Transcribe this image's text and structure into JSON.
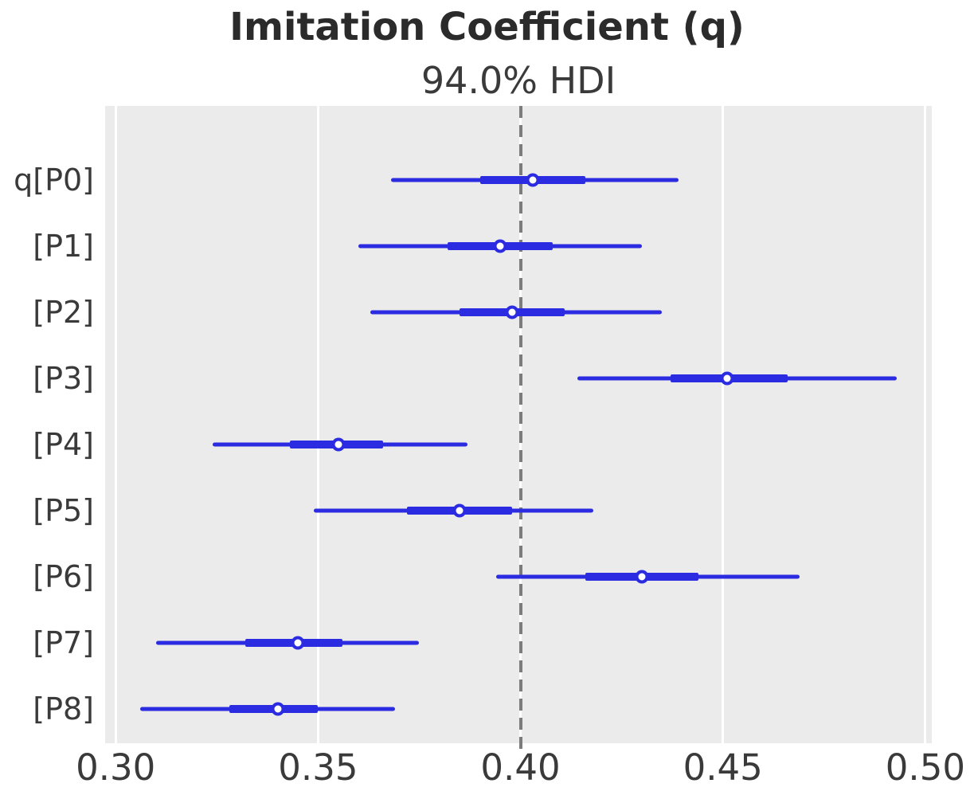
{
  "header": {
    "title": "Imitation Coefficient (q)",
    "subtitle": "94.0% HDI"
  },
  "colors": {
    "interval": "#2b2be1",
    "marker_fill": "#ffffff",
    "reference_line": "#7c7c7c",
    "plot_background": "#ebebeb",
    "gridline": "#ffffff",
    "text": "#3a3a3a",
    "title_text": "#2b2b2b"
  },
  "chart_data": {
    "type": "forest",
    "title": "Imitation Coefficient (q)",
    "subtitle": "94.0% HDI",
    "hdi_probability": "94.0%",
    "xlim": [
      0.2974,
      0.5016
    ],
    "x_ticks": [
      0.3,
      0.35,
      0.4,
      0.45,
      0.5
    ],
    "x_tick_labels": [
      "0.30",
      "0.35",
      "0.40",
      "0.45",
      "0.50"
    ],
    "reference_value": 0.4,
    "grid": "vertical-white-on-gray",
    "legend": "none",
    "rows": [
      {
        "label": "q[P0]",
        "hdi_low": 0.368,
        "q25": 0.39,
        "median": 0.403,
        "q75": 0.416,
        "hdi_high": 0.439
      },
      {
        "label": "[P1]",
        "hdi_low": 0.36,
        "q25": 0.382,
        "median": 0.395,
        "q75": 0.408,
        "hdi_high": 0.43
      },
      {
        "label": "[P2]",
        "hdi_low": 0.363,
        "q25": 0.385,
        "median": 0.398,
        "q75": 0.411,
        "hdi_high": 0.435
      },
      {
        "label": "[P3]",
        "hdi_low": 0.414,
        "q25": 0.437,
        "median": 0.451,
        "q75": 0.466,
        "hdi_high": 0.493
      },
      {
        "label": "[P4]",
        "hdi_low": 0.324,
        "q25": 0.343,
        "median": 0.355,
        "q75": 0.366,
        "hdi_high": 0.387
      },
      {
        "label": "[P5]",
        "hdi_low": 0.349,
        "q25": 0.372,
        "median": 0.385,
        "q75": 0.398,
        "hdi_high": 0.418
      },
      {
        "label": "[P6]",
        "hdi_low": 0.394,
        "q25": 0.416,
        "median": 0.43,
        "q75": 0.444,
        "hdi_high": 0.469
      },
      {
        "label": "[P7]",
        "hdi_low": 0.31,
        "q25": 0.332,
        "median": 0.345,
        "q75": 0.356,
        "hdi_high": 0.375
      },
      {
        "label": "[P8]",
        "hdi_low": 0.306,
        "q25": 0.328,
        "median": 0.34,
        "q75": 0.35,
        "hdi_high": 0.369
      }
    ]
  }
}
